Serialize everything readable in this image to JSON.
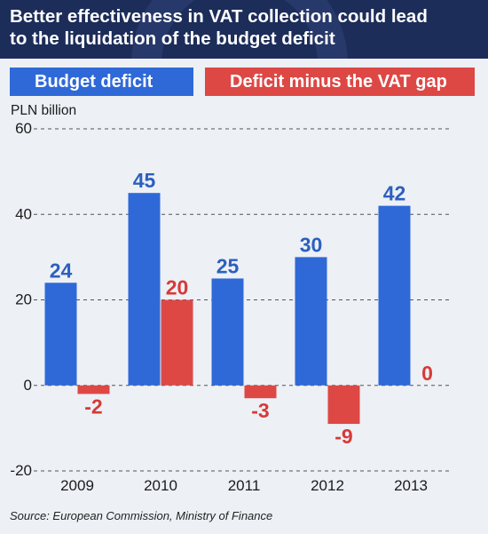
{
  "header": {
    "title": "Better effectiveness in VAT collection could lead\nto the liquidation of the budget deficit"
  },
  "unit_label": "PLN billion",
  "source": "Source: European Commission, Ministry of Finance",
  "colors": {
    "header_bg": "#1d2d5a",
    "page_bg": "#edf0f5",
    "blue": "#2f69d8",
    "red": "#dd4845",
    "blue_label": "#2c5fbf",
    "red_label": "#d63a37"
  },
  "chart_data": {
    "type": "bar",
    "categories": [
      "2009",
      "2010",
      "2011",
      "2012",
      "2013"
    ],
    "series": [
      {
        "name": "Budget deficit",
        "values": [
          24,
          45,
          25,
          30,
          42
        ]
      },
      {
        "name": "Deficit minus the VAT gap",
        "values": [
          -2,
          20,
          -3,
          -9,
          0
        ]
      }
    ],
    "data_labels": [
      [
        "24",
        "45",
        "25",
        "30",
        "42"
      ],
      [
        "-2",
        "20",
        "-3",
        "-9",
        "0"
      ]
    ],
    "ylabel": "PLN billion",
    "ylim": [
      -20,
      60
    ],
    "yticks": [
      -20,
      0,
      20,
      40,
      60
    ],
    "ytick_labels": [
      "-20",
      "0",
      "20",
      "40",
      "60"
    ],
    "grid": true,
    "legend": "top"
  }
}
